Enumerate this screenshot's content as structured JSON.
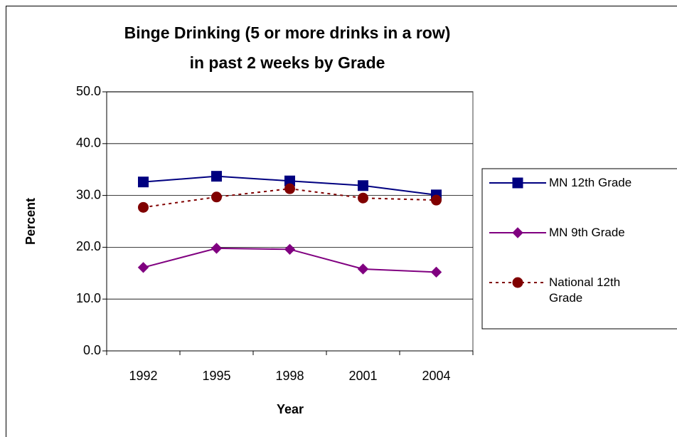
{
  "chart_data": {
    "type": "line",
    "title": [
      "Binge Drinking (5 or more drinks in a row)",
      "in past 2 weeks by Grade"
    ],
    "x_label": "Year",
    "y_label": "Percent",
    "categories": [
      "1992",
      "1995",
      "1998",
      "2001",
      "2004"
    ],
    "series": [
      {
        "name": "MN 12th Grade",
        "color": "#000080",
        "marker": "square",
        "dash": "solid",
        "values": [
          32.6,
          33.7,
          32.8,
          31.9,
          30.1
        ]
      },
      {
        "name": "MN 9th Grade",
        "color": "#800080",
        "marker": "diamond",
        "dash": "solid",
        "values": [
          16.1,
          19.8,
          19.6,
          15.8,
          15.2
        ]
      },
      {
        "name": "National 12th Grade",
        "color": "#800000",
        "marker": "circle",
        "dash": "dotted",
        "values": [
          27.7,
          29.7,
          31.3,
          29.5,
          29.1
        ]
      }
    ],
    "ylim": [
      0,
      50
    ],
    "yticks": [
      {
        "value": 0,
        "label": "0.0"
      },
      {
        "value": 10,
        "label": "10.0"
      },
      {
        "value": 20,
        "label": "20.0"
      },
      {
        "value": 30,
        "label": "30.0"
      },
      {
        "value": 40,
        "label": "40.0"
      },
      {
        "value": 50,
        "label": "50.0"
      }
    ],
    "grid": true,
    "legend": "right"
  }
}
